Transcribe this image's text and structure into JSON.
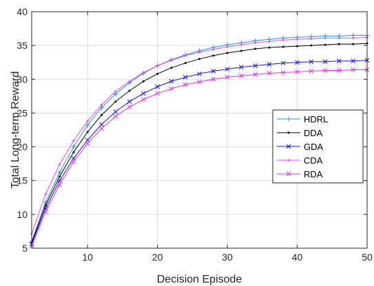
{
  "chart_data": {
    "type": "line",
    "xlabel": "Decision Episode",
    "ylabel": "Total Long-term Reward",
    "xlim": [
      2,
      50
    ],
    "ylim": [
      5,
      40
    ],
    "xticks": [
      10,
      20,
      30,
      40,
      50
    ],
    "yticks": [
      5,
      10,
      15,
      20,
      25,
      30,
      35,
      40
    ],
    "grid": true,
    "legend_position": "right",
    "x": [
      2,
      4,
      6,
      8,
      10,
      12,
      14,
      16,
      18,
      20,
      22,
      24,
      26,
      28,
      30,
      32,
      34,
      36,
      38,
      40,
      42,
      44,
      46,
      48,
      50
    ],
    "series": [
      {
        "name": "HDRL",
        "color": "#2b8fd6",
        "marker": "plus",
        "values": [
          6.0,
          11.8,
          16.2,
          20.0,
          23.2,
          25.8,
          27.8,
          29.5,
          30.9,
          32.0,
          32.9,
          33.6,
          34.2,
          34.7,
          35.1,
          35.4,
          35.7,
          35.9,
          36.1,
          36.2,
          36.3,
          36.4,
          36.4,
          36.5,
          36.5
        ]
      },
      {
        "name": "DDA",
        "color": "#000000",
        "marker": "dot",
        "values": [
          5.8,
          11.4,
          15.6,
          19.2,
          22.2,
          24.7,
          26.7,
          28.3,
          29.7,
          30.8,
          31.7,
          32.4,
          33.0,
          33.5,
          33.9,
          34.2,
          34.5,
          34.7,
          34.8,
          34.9,
          35.0,
          35.1,
          35.2,
          35.2,
          35.3
        ]
      },
      {
        "name": "GDA",
        "color": "#1515d6",
        "marker": "x",
        "values": [
          5.6,
          10.9,
          15.0,
          18.3,
          21.0,
          23.3,
          25.2,
          26.7,
          27.9,
          28.9,
          29.7,
          30.3,
          30.8,
          31.2,
          31.5,
          31.8,
          32.0,
          32.2,
          32.4,
          32.5,
          32.6,
          32.6,
          32.7,
          32.7,
          32.8
        ]
      },
      {
        "name": "CDA",
        "color": "#e64ce6",
        "marker": "dot",
        "values": [
          7.1,
          13.0,
          17.4,
          20.9,
          23.8,
          26.2,
          28.2,
          29.7,
          31.0,
          32.0,
          32.8,
          33.5,
          34.0,
          34.4,
          34.8,
          35.1,
          35.4,
          35.6,
          35.8,
          35.9,
          36.0,
          36.1,
          36.1,
          36.1,
          36.2
        ]
      },
      {
        "name": "RDA",
        "color": "#e033e0",
        "marker": "x",
        "values": [
          5.3,
          10.4,
          14.4,
          17.8,
          20.5,
          22.7,
          24.5,
          25.9,
          27.0,
          27.9,
          28.6,
          29.2,
          29.6,
          30.0,
          30.3,
          30.5,
          30.7,
          30.9,
          31.0,
          31.1,
          31.2,
          31.3,
          31.3,
          31.4,
          31.4
        ]
      }
    ]
  }
}
